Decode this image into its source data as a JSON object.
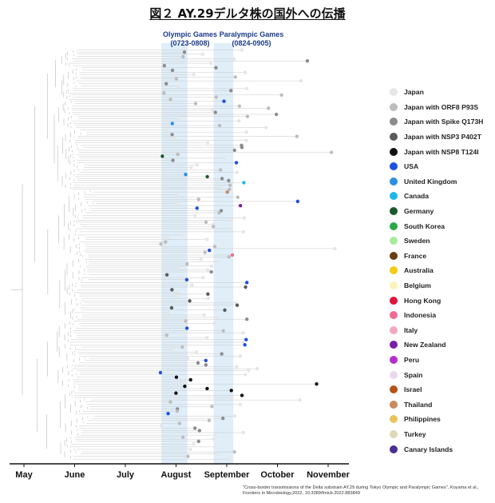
{
  "title": "図２ AY.29デルタ株の国外への伝播",
  "games": {
    "olympic_label": "Olympic Games",
    "olympic_dates": "(0723-0808)",
    "paralympic_label": "Paralympic Games",
    "paralympic_dates": "(0824-0905)"
  },
  "citation": "\"Cross-border transmissions of the Delta substrain AY.29 during Tokyo Olympic and Paralympic Games\", Koyama et al., Frontiers in Microbiology,2022, 10.3389/fmicb.2022.883849",
  "chart_data": {
    "type": "scatter",
    "x_axis": {
      "ticks": [
        {
          "label": "May",
          "month_index": 0
        },
        {
          "label": "June",
          "month_index": 1
        },
        {
          "label": "July",
          "month_index": 2
        },
        {
          "label": "August",
          "month_index": 3
        },
        {
          "label": "September",
          "month_index": 4
        },
        {
          "label": "October",
          "month_index": 5
        },
        {
          "label": "November",
          "month_index": 6
        }
      ]
    },
    "shaded_periods": [
      {
        "name": "Olympic Games",
        "start": "07-23",
        "end": "08-08"
      },
      {
        "name": "Paralympic Games",
        "start": "08-24",
        "end": "09-05"
      }
    ],
    "legend": [
      {
        "label": "Japan",
        "color": "#e6e6e6"
      },
      {
        "label": "Japan with ORF8 P93S",
        "color": "#bdbdbd"
      },
      {
        "label": "Japan with Spike Q173H",
        "color": "#8c8c8c"
      },
      {
        "label": "Japan with NSP3 P402T",
        "color": "#5a5a5a"
      },
      {
        "label": "Japan with NSP8 T124I",
        "color": "#111111"
      },
      {
        "label": "USA",
        "color": "#1f4fe0"
      },
      {
        "label": "United Kingdom",
        "color": "#2a8fe0"
      },
      {
        "label": "Canada",
        "color": "#1cb8e8"
      },
      {
        "label": "Germany",
        "color": "#1c5a2e"
      },
      {
        "label": "South Korea",
        "color": "#27a844"
      },
      {
        "label": "Sweden",
        "color": "#a8ec9a"
      },
      {
        "label": "France",
        "color": "#6b3d10"
      },
      {
        "label": "Australia",
        "color": "#f3cb10"
      },
      {
        "label": "Belgium",
        "color": "#fbf3b8"
      },
      {
        "label": "Hong Kong",
        "color": "#e0153c"
      },
      {
        "label": "Indonesia",
        "color": "#f06a92"
      },
      {
        "label": "Italy",
        "color": "#f4a8c0"
      },
      {
        "label": "New Zealand",
        "color": "#7a1fa8"
      },
      {
        "label": "Peru",
        "color": "#b52fd0"
      },
      {
        "label": "Spain",
        "color": "#ead8f2"
      },
      {
        "label": "Israel",
        "color": "#b5531a"
      },
      {
        "label": "Thailand",
        "color": "#c88a5e"
      },
      {
        "label": "Philippines",
        "color": "#e8c45a"
      },
      {
        "label": "Turkey",
        "color": "#e0d9b8"
      },
      {
        "label": "Canary Islands",
        "color": "#4b2e8f"
      }
    ]
  }
}
